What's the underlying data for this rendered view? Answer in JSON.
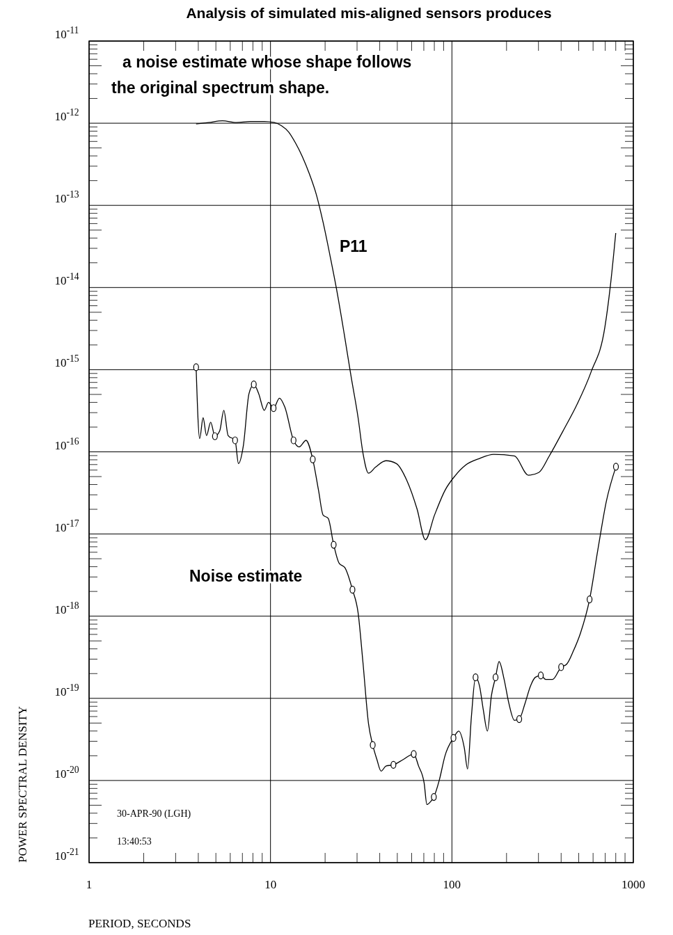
{
  "chart_data": {
    "type": "line",
    "title": "Analysis of simulated mis-aligned sensors produces",
    "xlabel": "PERIOD, SECONDS",
    "ylabel": "POWER SPECTRAL DENSITY",
    "annotations": [
      "a noise estimate whose shape follows",
      "the original spectrum shape.",
      "30-APR-90 (LGH)",
      "13:40:53"
    ],
    "log": "xy",
    "grid": true,
    "legend": false,
    "line_style": "solid",
    "xlim": [
      1,
      1000
    ],
    "xticks": [
      1,
      10,
      100,
      1000
    ],
    "ylim": [
      1e-21,
      1e-11
    ],
    "yticks": [
      {
        "value": 1e-21,
        "label": "10$^{-21}$"
      },
      {
        "value": 1e-20,
        "label": "10$^{-20}$"
      },
      {
        "value": 1e-19,
        "label": "10$^{-19}$"
      },
      {
        "value": 1e-18,
        "label": "10$^{-18}$"
      },
      {
        "value": 1e-17,
        "label": "10$^{-17}$"
      },
      {
        "value": 1e-16,
        "label": "10$^{-16}$"
      },
      {
        "value": 1e-15,
        "label": "10$^{-15}$"
      },
      {
        "value": 1e-14,
        "label": "10$^{-14}$"
      },
      {
        "value": 1e-13,
        "label": "10$^{-13}$"
      },
      {
        "value": 1e-12,
        "label": "10$^{-12}$"
      },
      {
        "value": 1e-11,
        "label": "10$^{-11}$"
      }
    ],
    "series": [
      {
        "name": "P11",
        "color": "#000000",
        "marker": "none",
        "x": [
          3.89,
          4.56,
          5.44,
          6.49,
          7.74,
          9.24,
          10.5,
          11.5,
          12.6,
          13.7,
          15.0,
          16.4,
          17.9,
          19.5,
          21.4,
          23.3,
          25.5,
          27.8,
          30.4,
          32.3,
          34.7,
          37.9,
          43.3,
          49.4,
          56.4,
          64.3,
          71.4,
          80.2,
          91.6,
          104,
          119,
          142,
          170,
          221,
          264,
          301,
          344,
          410,
          490,
          584,
          697,
          748,
          800
        ],
        "values": [
          9.8e-13,
          1.02e-12,
          1.07e-12,
          1.02e-12,
          1.05e-12,
          1.05e-12,
          1.02e-12,
          9.3e-13,
          7.8e-13,
          5.8e-13,
          3.9e-13,
          2.4e-13,
          1.35e-13,
          6.2e-14,
          2.3e-14,
          8.7e-15,
          2.7e-15,
          8.3e-16,
          2.6e-16,
          9.8e-17,
          5.5e-17,
          6.5e-17,
          7.8e-17,
          7.2e-17,
          4.5e-17,
          2e-17,
          8.5e-18,
          1.7e-17,
          3.4e-17,
          5.1e-17,
          6.9e-17,
          8.3e-17,
          9.3e-17,
          8.9e-17,
          5.2e-17,
          5.6e-17,
          8.9e-17,
          1.8e-16,
          3.8e-16,
          9.3e-16,
          3.3e-15,
          1.07e-14,
          4.6e-14
        ]
      },
      {
        "name": "Noise estimate",
        "color": "#000000",
        "marker": "none",
        "x": [
          3.89,
          4.07,
          4.25,
          4.44,
          4.68,
          4.94,
          5.25,
          5.53,
          5.84,
          6.38,
          6.66,
          7.09,
          7.61,
          8.09,
          8.61,
          9.24,
          9.75,
          10.4,
          11.2,
          12.0,
          13.4,
          14.4,
          15.7,
          17.1,
          18.4,
          19.5,
          20.8,
          22.3,
          23.9,
          25.7,
          28.3,
          30.4,
          32.3,
          34.7,
          36.6,
          38.6,
          40.7,
          43.3,
          47.6,
          53.9,
          61.6,
          65.5,
          70.3,
          72.8,
          76.7,
          79.5,
          85.3,
          91.6,
          102,
          109,
          117,
          122,
          128,
          135,
          142,
          149,
          157,
          165,
          174,
          182,
          194,
          206,
          221,
          235,
          253,
          271,
          288,
          309,
          329,
          359,
          400,
          429,
          468,
          511,
          574,
          638,
          710,
          802
        ],
        "values": [
          1.07e-15,
          1.45e-16,
          2.6e-16,
          1.58e-16,
          2.3e-16,
          1.55e-16,
          1.8e-16,
          3.2e-16,
          1.58e-16,
          1.38e-16,
          7.2e-17,
          1.2e-16,
          5.1e-16,
          6.6e-16,
          5.1e-16,
          3.2e-16,
          4e-16,
          3.4e-16,
          4.5e-16,
          3.5e-16,
          1.38e-16,
          1.15e-16,
          1.38e-16,
          8.1e-17,
          3.4e-17,
          1.7e-17,
          1.55e-17,
          7.4e-18,
          4.4e-18,
          3.9e-18,
          2.1e-18,
          1.1e-18,
          2.8e-19,
          4.9e-20,
          2.7e-20,
          1.8e-20,
          1.3e-20,
          1.5e-20,
          1.55e-20,
          1.8e-20,
          2.1e-20,
          1.5e-20,
          9.3e-21,
          5.1e-21,
          5.6e-21,
          6.3e-21,
          1.02e-20,
          2e-20,
          3.3e-20,
          4e-20,
          2.5e-20,
          1.38e-20,
          5.9e-20,
          1.8e-19,
          1.41e-19,
          7.2e-20,
          4e-20,
          1.07e-19,
          1.8e-19,
          2.8e-19,
          1.7e-19,
          8.7e-20,
          5.4e-20,
          5.6e-20,
          8.7e-20,
          1.41e-19,
          1.8e-19,
          1.9e-19,
          1.7e-19,
          1.7e-19,
          2.4e-19,
          2.6e-19,
          3.8e-19,
          6.2e-19,
          1.6e-18,
          6.5e-18,
          2.5e-17,
          6.6e-17
        ]
      },
      {
        "color": "#000000",
        "type": "scatter",
        "marker": "circle",
        "x": [
          3.89,
          4.94,
          6.38,
          8.09,
          10.4,
          13.4,
          17.1,
          22.3,
          28.3,
          36.6,
          47.6,
          61.6,
          79.5,
          102,
          135,
          174,
          235,
          309,
          400,
          574,
          802
        ],
        "values": [
          1.07e-15,
          1.55e-16,
          1.38e-16,
          6.6e-16,
          3.4e-16,
          1.38e-16,
          8.1e-17,
          7.4e-18,
          2.1e-18,
          2.7e-20,
          1.55e-20,
          2.1e-20,
          6.3e-21,
          3.3e-20,
          1.8e-19,
          1.8e-19,
          5.6e-20,
          1.9e-19,
          2.4e-19,
          1.6e-18,
          6.6e-17
        ]
      }
    ]
  }
}
